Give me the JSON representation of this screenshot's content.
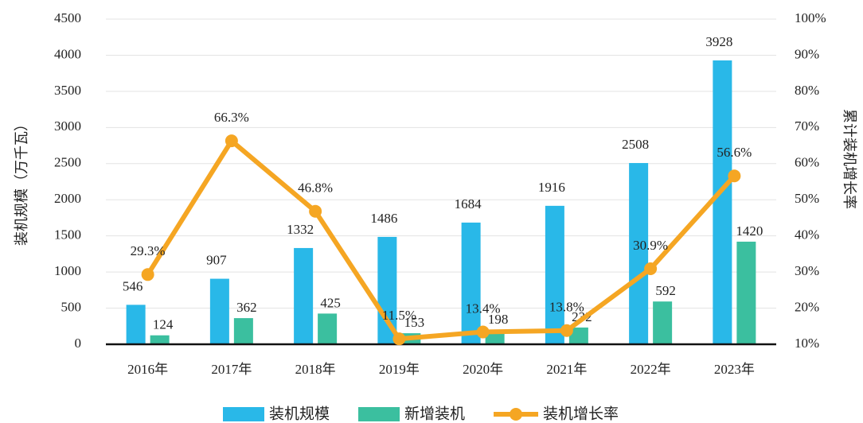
{
  "chart_data": {
    "type": "bar",
    "y_label": "装机规模（万千瓦）",
    "y2_label": "累计装机增长率",
    "categories": [
      "2016年",
      "2017年",
      "2018年",
      "2019年",
      "2020年",
      "2021年",
      "2022年",
      "2023年"
    ],
    "series": [
      {
        "name": "装机规模",
        "type": "bar",
        "color": "#29b8e8",
        "values": [
          546,
          907,
          1332,
          1486,
          1684,
          1916,
          2508,
          3928
        ]
      },
      {
        "name": "新增装机",
        "type": "bar",
        "color": "#3bbf9f",
        "values": [
          124,
          362,
          425,
          153,
          198,
          232,
          592,
          1420
        ]
      },
      {
        "name": "装机增长率",
        "type": "line",
        "axis": "y2",
        "color": "#f5a623",
        "values": [
          29.3,
          66.3,
          46.8,
          11.5,
          13.4,
          13.8,
          30.9,
          56.6
        ],
        "value_labels": [
          "29.3%",
          "66.3%",
          "46.8%",
          "11.5%",
          "13.4%",
          "13.8%",
          "30.9%",
          "56.6%"
        ]
      }
    ],
    "ylim": [
      0,
      4500
    ],
    "yticks": [
      0,
      500,
      1000,
      1500,
      2000,
      2500,
      3000,
      3500,
      4000,
      4500
    ],
    "y2lim": [
      10,
      100
    ],
    "y2ticks": [
      {
        "value": 10,
        "label": "10%"
      },
      {
        "value": 20,
        "label": "20%"
      },
      {
        "value": 30,
        "label": "30%"
      },
      {
        "value": 40,
        "label": "40%"
      },
      {
        "value": 50,
        "label": "50%"
      },
      {
        "value": 60,
        "label": "60%"
      },
      {
        "value": 70,
        "label": "70%"
      },
      {
        "value": 80,
        "label": "80%"
      },
      {
        "value": 90,
        "label": "90%"
      },
      {
        "value": 100,
        "label": "100%"
      }
    ],
    "grid": true
  }
}
